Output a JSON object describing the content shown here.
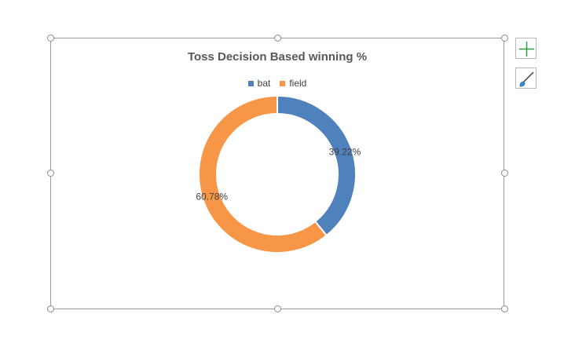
{
  "chart_buttons": {
    "add_element_icon": "plus-icon",
    "styles_icon": "paintbrush-icon"
  },
  "chart_data": {
    "type": "pie",
    "title": "Toss Decision Based winning %",
    "legend": [
      "bat",
      "field"
    ],
    "legend_position": "top",
    "donut": true,
    "slices": [
      {
        "label": "bat",
        "value": 39.22,
        "data_label": "39.22%",
        "color": "#4f81bd"
      },
      {
        "label": "field",
        "value": 60.78,
        "data_label": "60.78%",
        "color": "#f79646"
      }
    ]
  }
}
